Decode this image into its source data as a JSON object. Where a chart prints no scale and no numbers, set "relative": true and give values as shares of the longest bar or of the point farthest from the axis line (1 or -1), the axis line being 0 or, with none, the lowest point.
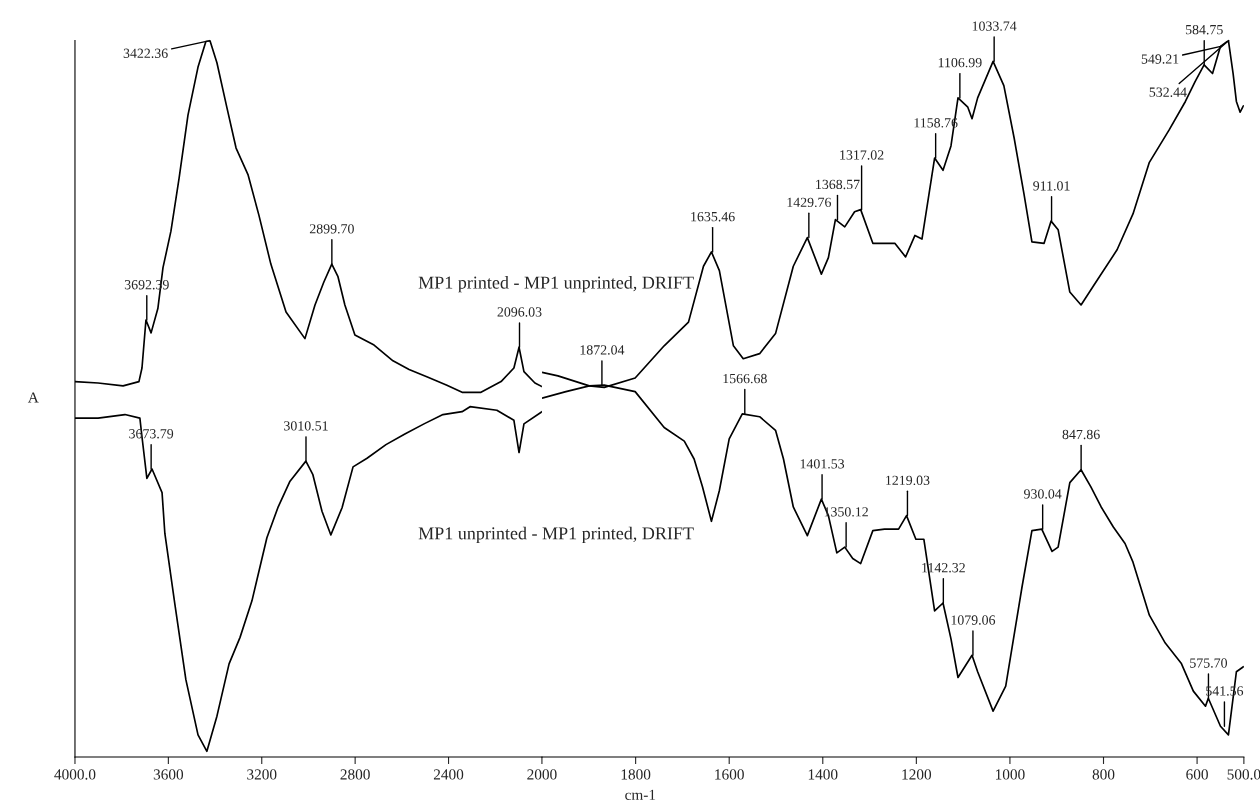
{
  "chart_data": [
    {
      "type": "line",
      "relative": true,
      "ylabel": "A",
      "xlim": [
        4000,
        2000
      ],
      "xticks": [
        {
          "value": 4000,
          "label": "4000.0"
        },
        3600,
        3200,
        2800,
        2400,
        2000
      ],
      "grid": false,
      "legend": false,
      "marker": "none",
      "line_style": "solid",
      "series": [
        {
          "color": "#000000",
          "x": [
            4000,
            3901,
            3794,
            3726,
            3713,
            3696,
            3674,
            3645,
            3623,
            3589,
            3554,
            3516,
            3473,
            3439,
            3422,
            3392,
            3349,
            3310,
            3259,
            3212,
            3161,
            3096,
            3015,
            2972,
            2934,
            2900,
            2874,
            2844,
            2801,
            2719,
            2638,
            2569,
            2488,
            2407,
            2342,
            2261,
            2175,
            2120,
            2098,
            2077,
            2030,
            2000
          ],
          "values": [
            0.524,
            0.522,
            0.518,
            0.524,
            0.543,
            0.61,
            0.592,
            0.626,
            0.683,
            0.734,
            0.808,
            0.896,
            0.963,
            0.999,
            1.0,
            0.969,
            0.906,
            0.85,
            0.813,
            0.756,
            0.688,
            0.621,
            0.584,
            0.631,
            0.663,
            0.688,
            0.671,
            0.631,
            0.589,
            0.575,
            0.553,
            0.541,
            0.53,
            0.519,
            0.509,
            0.509,
            0.524,
            0.543,
            0.572,
            0.538,
            0.522,
            0.517
          ]
        },
        {
          "color": "#000000",
          "x": [
            4000,
            3901,
            3786,
            3722,
            3713,
            3692,
            3670,
            3627,
            3615,
            3572,
            3525,
            3473,
            3435,
            3392,
            3340,
            3293,
            3242,
            3178,
            3131,
            3079,
            3011,
            2981,
            2942,
            2904,
            2856,
            2809,
            2749,
            2668,
            2587,
            2505,
            2424,
            2342,
            2308,
            2193,
            2120,
            2098,
            2077,
            2000
          ],
          "values": [
            0.473,
            0.473,
            0.478,
            0.473,
            0.447,
            0.389,
            0.402,
            0.369,
            0.312,
            0.213,
            0.108,
            0.031,
            0.008,
            0.057,
            0.13,
            0.167,
            0.218,
            0.306,
            0.348,
            0.385,
            0.413,
            0.394,
            0.343,
            0.31,
            0.348,
            0.405,
            0.417,
            0.436,
            0.451,
            0.465,
            0.478,
            0.482,
            0.489,
            0.484,
            0.47,
            0.425,
            0.465,
            0.482
          ]
        }
      ],
      "annotations": [
        {
          "text": "3692.39",
          "x": 3692.39,
          "y": 0.61
        },
        {
          "text": "3422.36",
          "x": 3422.36,
          "y": 1.0
        },
        {
          "text": "2899.70",
          "x": 2899.7,
          "y": 0.688
        },
        {
          "text": "2096.03",
          "x": 2096.03,
          "y": 0.572
        },
        {
          "text": "3673.79",
          "x": 3673.79,
          "y": 0.402
        },
        {
          "text": "3010.51",
          "x": 3010.51,
          "y": 0.413
        }
      ]
    },
    {
      "type": "line",
      "relative": true,
      "xlabel": "cm-1",
      "xlim": [
        2000,
        500
      ],
      "xticks": [
        1800,
        1600,
        1400,
        1200,
        1000,
        800,
        600,
        {
          "value": 500,
          "label": "500.0"
        }
      ],
      "grid": false,
      "legend": false,
      "marker": "none",
      "line_style": "solid",
      "series": [
        {
          "name": "MP1 printed - MP1 unprinted, DRIFT",
          "color": "#000000",
          "x": [
            2000,
            1966,
            1899,
            1867,
            1801,
            1739,
            1687,
            1655,
            1638,
            1621,
            1591,
            1570,
            1535,
            1501,
            1463,
            1433,
            1403,
            1388,
            1373,
            1353,
            1332,
            1319,
            1293,
            1246,
            1223,
            1203,
            1188,
            1161,
            1143,
            1126,
            1111,
            1090,
            1081,
            1069,
            1036,
            1013,
            991,
            970,
            953,
            927,
            912,
            897,
            872,
            848,
            822,
            771,
            737,
            702,
            660,
            625,
            604,
            585,
            567,
            550,
            533,
            523,
            516,
            508,
            501
          ],
          "values": [
            0.537,
            0.532,
            0.518,
            0.516,
            0.529,
            0.574,
            0.607,
            0.685,
            0.705,
            0.679,
            0.574,
            0.556,
            0.563,
            0.591,
            0.685,
            0.725,
            0.674,
            0.697,
            0.75,
            0.74,
            0.761,
            0.764,
            0.717,
            0.717,
            0.698,
            0.728,
            0.723,
            0.836,
            0.819,
            0.853,
            0.92,
            0.907,
            0.891,
            0.92,
            0.971,
            0.937,
            0.864,
            0.786,
            0.719,
            0.717,
            0.748,
            0.736,
            0.649,
            0.631,
            0.657,
            0.708,
            0.758,
            0.83,
            0.875,
            0.915,
            0.943,
            0.966,
            0.954,
            0.992,
            1.0,
            0.954,
            0.915,
            0.9,
            0.909
          ]
        },
        {
          "name": "MP1 unprinted - MP1 printed, DRIFT",
          "color": "#000000",
          "x": [
            2000,
            1949,
            1899,
            1867,
            1801,
            1739,
            1696,
            1675,
            1657,
            1638,
            1621,
            1600,
            1572,
            1535,
            1501,
            1484,
            1463,
            1433,
            1403,
            1388,
            1370,
            1353,
            1336,
            1319,
            1293,
            1268,
            1238,
            1221,
            1201,
            1184,
            1161,
            1143,
            1126,
            1111,
            1081,
            1069,
            1036,
            1009,
            974,
            953,
            932,
            910,
            897,
            872,
            848,
            827,
            805,
            779,
            754,
            737,
            702,
            668,
            634,
            608,
            582,
            576,
            550,
            533,
            516,
            501
          ],
          "values": [
            0.501,
            0.51,
            0.518,
            0.519,
            0.51,
            0.46,
            0.441,
            0.416,
            0.377,
            0.329,
            0.372,
            0.444,
            0.479,
            0.475,
            0.456,
            0.416,
            0.349,
            0.309,
            0.36,
            0.337,
            0.285,
            0.293,
            0.277,
            0.27,
            0.316,
            0.318,
            0.318,
            0.337,
            0.304,
            0.304,
            0.204,
            0.215,
            0.165,
            0.111,
            0.142,
            0.119,
            0.064,
            0.099,
            0.238,
            0.316,
            0.318,
            0.287,
            0.293,
            0.383,
            0.401,
            0.377,
            0.349,
            0.321,
            0.298,
            0.272,
            0.198,
            0.159,
            0.131,
            0.092,
            0.071,
            0.082,
            0.043,
            0.031,
            0.119,
            0.126
          ]
        }
      ],
      "annotations": [
        {
          "text": "1872.04",
          "x": 1872.04,
          "y": 0.519
        },
        {
          "text": "1635.46",
          "x": 1635.46,
          "y": 0.705
        },
        {
          "text": "1566.68",
          "x": 1566.68,
          "y": 0.479
        },
        {
          "text": "1429.76",
          "x": 1429.76,
          "y": 0.725
        },
        {
          "text": "1401.53",
          "x": 1401.53,
          "y": 0.36
        },
        {
          "text": "1368.57",
          "x": 1368.57,
          "y": 0.75
        },
        {
          "text": "1350.12",
          "x": 1350.12,
          "y": 0.293
        },
        {
          "text": "1317.02",
          "x": 1317.02,
          "y": 0.764
        },
        {
          "text": "1219.03",
          "x": 1219.03,
          "y": 0.337
        },
        {
          "text": "1158.76",
          "x": 1158.76,
          "y": 0.836
        },
        {
          "text": "1142.32",
          "x": 1142.32,
          "y": 0.215
        },
        {
          "text": "1106.99",
          "x": 1106.99,
          "y": 0.92
        },
        {
          "text": "1079.06",
          "x": 1079.06,
          "y": 0.142
        },
        {
          "text": "1033.74",
          "x": 1033.74,
          "y": 0.971
        },
        {
          "text": "930.04",
          "x": 930.04,
          "y": 0.318
        },
        {
          "text": "911.01",
          "x": 911.01,
          "y": 0.748
        },
        {
          "text": "847.86",
          "x": 847.86,
          "y": 0.401
        },
        {
          "text": "584.75",
          "x": 584.75,
          "y": 0.966
        },
        {
          "text": "575.70",
          "x": 575.7,
          "y": 0.082
        },
        {
          "text": "549.21",
          "x": 549.21,
          "y": 0.992
        },
        {
          "text": "541.56",
          "x": 541.56,
          "y": 0.043
        },
        {
          "text": "532.44",
          "x": 532.44,
          "y": 1.0
        }
      ]
    }
  ]
}
